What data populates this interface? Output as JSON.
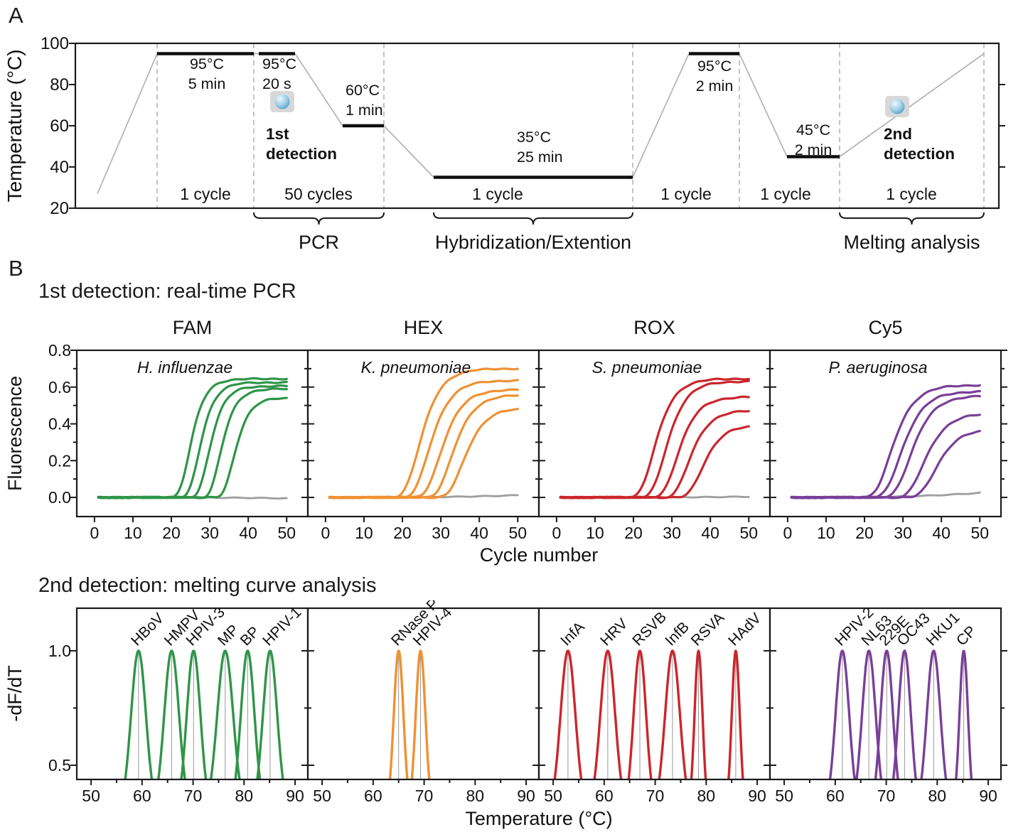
{
  "figure": {
    "panel_a_label": "A",
    "panel_b_label": "B",
    "pcr_heading": "1st detection: real-time PCR",
    "melt_heading": "2nd detection: melting curve analysis"
  },
  "colors": {
    "fam_green": "#2f9548",
    "hex_orange": "#ef9133",
    "rox_red": "#cb262c",
    "cy5_purple": "#7a3f98",
    "baseline_gray": "#9e9e9e",
    "profile_gray": "#b3b3b3",
    "divider_gray": "#ababab",
    "guide_gray": "#999999",
    "axis_black": "#1a1a1a",
    "icon_plate_gray": "#d8d8d8",
    "icon_sphere_blue": "#4e9ac6"
  },
  "chart_data": {
    "thermal_profile": {
      "type": "line",
      "ylabel": "Temperature (°C)",
      "ylim": [
        20,
        100
      ],
      "yticks": [
        20,
        40,
        60,
        80,
        100
      ],
      "right_edge_ticks": [
        40,
        60,
        80
      ],
      "start_temp_c": 27,
      "steps": [
        {
          "temp_c": 95,
          "temp_label": "95°C",
          "time_label": "5 min",
          "cycle_label": "1 cycle"
        },
        {
          "temp_c": 95,
          "temp_label": "95°C",
          "time_label": "20 s",
          "cycle_label": "50 cycles",
          "detection": {
            "line1": "1st",
            "line2": "detection"
          }
        },
        {
          "temp_c": 60,
          "temp_label": "60°C",
          "time_label": "1 min"
        },
        {
          "temp_c": 35,
          "temp_label": "35°C",
          "time_label": "25 min",
          "cycle_label": "1 cycle"
        },
        {
          "temp_c": 95,
          "temp_label": "95°C",
          "time_label": "2 min",
          "cycle_label": "1 cycle"
        },
        {
          "temp_c": 45,
          "temp_label": "45°C",
          "time_label": "2 min",
          "cycle_label": "1 cycle"
        },
        {
          "ramp_to_c": 95,
          "cycle_label": "1 cycle",
          "detection": {
            "line1": "2nd",
            "line2": "detection"
          }
        }
      ],
      "braces": [
        {
          "label": "PCR"
        },
        {
          "label": "Hybridization/Extention"
        },
        {
          "label": "Melting analysis"
        }
      ]
    },
    "realtime_pcr": {
      "type": "line",
      "xlabel": "Cycle number",
      "ylabel": "Fluorescence",
      "x_range_cycles": [
        1,
        50
      ],
      "xlim": [
        -4.6,
        55.5
      ],
      "ylim": [
        -0.104,
        0.8
      ],
      "xticks": [
        0,
        10,
        20,
        30,
        40,
        50
      ],
      "yticks": [
        0.0,
        0.2,
        0.4,
        0.6,
        0.8
      ],
      "panels": [
        {
          "title": "FAM",
          "species": "H. influenzae",
          "color_key": "fam_green",
          "sigmoid_slope": 2.4,
          "baseline_end": -0.005,
          "series": [
            {
              "midpoint_cycle": 24.5,
              "fluorescence_at_50": 0.645
            },
            {
              "midpoint_cycle": 27.0,
              "fluorescence_at_50": 0.625
            },
            {
              "midpoint_cycle": 29.5,
              "fluorescence_at_50": 0.605
            },
            {
              "midpoint_cycle": 32.5,
              "fluorescence_at_50": 0.59
            },
            {
              "midpoint_cycle": 36.0,
              "fluorescence_at_50": 0.54
            }
          ]
        },
        {
          "title": "HEX",
          "species": "K. pneumoniae",
          "color_key": "hex_orange",
          "sigmoid_slope": 3.4,
          "baseline_end": 0.012,
          "series": [
            {
              "midpoint_cycle": 24.0,
              "fluorescence_at_50": 0.7
            },
            {
              "midpoint_cycle": 26.5,
              "fluorescence_at_50": 0.635
            },
            {
              "midpoint_cycle": 29.5,
              "fluorescence_at_50": 0.585
            },
            {
              "midpoint_cycle": 32.5,
              "fluorescence_at_50": 0.555
            },
            {
              "midpoint_cycle": 35.5,
              "fluorescence_at_50": 0.48
            }
          ]
        },
        {
          "title": "ROX",
          "species": "S. pneumoniae",
          "color_key": "rox_red",
          "sigmoid_slope": 3.2,
          "baseline_end": 0.004,
          "series": [
            {
              "midpoint_cycle": 25.0,
              "fluorescence_at_50": 0.645
            },
            {
              "midpoint_cycle": 28.0,
              "fluorescence_at_50": 0.63
            },
            {
              "midpoint_cycle": 31.0,
              "fluorescence_at_50": 0.545
            },
            {
              "midpoint_cycle": 34.0,
              "fluorescence_at_50": 0.47
            },
            {
              "midpoint_cycle": 37.5,
              "fluorescence_at_50": 0.385
            }
          ]
        },
        {
          "title": "Cy5",
          "species": "P. aeruginosa",
          "color_key": "cy5_purple",
          "sigmoid_slope": 3.6,
          "baseline_end": 0.025,
          "series": [
            {
              "midpoint_cycle": 26.5,
              "fluorescence_at_50": 0.61
            },
            {
              "midpoint_cycle": 29.0,
              "fluorescence_at_50": 0.575
            },
            {
              "midpoint_cycle": 31.5,
              "fluorescence_at_50": 0.55
            },
            {
              "midpoint_cycle": 35.0,
              "fluorescence_at_50": 0.45
            },
            {
              "midpoint_cycle": 38.0,
              "fluorescence_at_50": 0.36
            }
          ]
        }
      ]
    },
    "melting_curves": {
      "type": "line",
      "xlabel": "Temperature (°C)",
      "ylabel": "-dF/dT",
      "xlim": [
        47.2,
        92.5
      ],
      "ylim": [
        0.438,
        1.186
      ],
      "xticks": [
        50,
        60,
        70,
        80,
        90
      ],
      "xticks_minor": [
        55,
        65,
        75,
        85
      ],
      "yticks": [
        0.5,
        1.0
      ],
      "yticks_minor": [
        0.75
      ],
      "peak_height": 1.0,
      "panels": [
        {
          "color_key": "fam_green",
          "peaks": [
            {
              "label": "HBoV",
              "tm_c": 59.3,
              "half_width_c": 2.6
            },
            {
              "label": "HMPV",
              "tm_c": 65.8,
              "half_width_c": 2.6
            },
            {
              "label": "HPIV-3",
              "tm_c": 70.1,
              "half_width_c": 2.4
            },
            {
              "label": "MP",
              "tm_c": 76.3,
              "half_width_c": 2.8
            },
            {
              "label": "BP",
              "tm_c": 80.7,
              "half_width_c": 2.4
            },
            {
              "label": "HPIV-1",
              "tm_c": 85.1,
              "half_width_c": 2.5
            }
          ]
        },
        {
          "color_key": "hex_orange",
          "peaks": [
            {
              "label": "RNase P",
              "tm_c": 65.0,
              "half_width_c": 1.7
            },
            {
              "label": "HPIV-4",
              "tm_c": 69.3,
              "half_width_c": 1.7
            }
          ]
        },
        {
          "color_key": "rox_red",
          "peaks": [
            {
              "label": "InfA",
              "tm_c": 52.9,
              "half_width_c": 2.6
            },
            {
              "label": "HRV",
              "tm_c": 60.7,
              "half_width_c": 2.6
            },
            {
              "label": "RSVB",
              "tm_c": 67.0,
              "half_width_c": 2.2
            },
            {
              "label": "InfB",
              "tm_c": 73.4,
              "half_width_c": 2.6
            },
            {
              "label": "RSVA",
              "tm_c": 78.5,
              "half_width_c": 1.4
            },
            {
              "label": "HAdV",
              "tm_c": 85.8,
              "half_width_c": 1.4
            }
          ]
        },
        {
          "color_key": "cy5_purple",
          "peaks": [
            {
              "label": "HPIV-2",
              "tm_c": 61.4,
              "half_width_c": 2.4
            },
            {
              "label": "NL63",
              "tm_c": 66.6,
              "half_width_c": 2.4
            },
            {
              "label": "229E",
              "tm_c": 70.1,
              "half_width_c": 2.2
            },
            {
              "label": "OC43",
              "tm_c": 73.6,
              "half_width_c": 2.2
            },
            {
              "label": "HKU1",
              "tm_c": 79.3,
              "half_width_c": 2.4
            },
            {
              "label": "CP",
              "tm_c": 85.2,
              "half_width_c": 1.5
            }
          ]
        }
      ]
    }
  }
}
